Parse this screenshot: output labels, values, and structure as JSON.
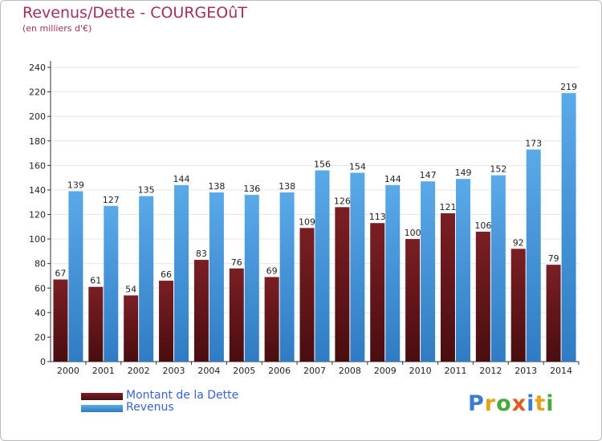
{
  "title": "Revenus/Dette - COURGEOûT",
  "subtitle": "(en milliers d'€)",
  "colors": {
    "debt": "#7a1f24",
    "debt_dark": "#4a0d10",
    "revenue": "#5aa9e8",
    "revenue_dark": "#2f7cc4",
    "grid": "#e6e6e6",
    "axis": "#333333",
    "title": "#a0305a",
    "legend_text": "#3a63d0"
  },
  "logo": {
    "text": "Proxiti",
    "letter_colors": [
      "#3a7bd5",
      "#e8a21a",
      "#4aa83c",
      "#e05a1e",
      "#3a7bd5",
      "#e8a21a",
      "#4aa83c"
    ]
  },
  "chart_data": {
    "type": "bar",
    "categories": [
      "2000",
      "2001",
      "2002",
      "2003",
      "2004",
      "2005",
      "2006",
      "2007",
      "2008",
      "2009",
      "2010",
      "2011",
      "2012",
      "2013",
      "2014"
    ],
    "series": [
      {
        "name": "Montant de la Dette",
        "values": [
          67,
          61,
          54,
          66,
          83,
          76,
          69,
          109,
          126,
          113,
          100,
          121,
          106,
          92,
          79
        ]
      },
      {
        "name": "Revenus",
        "values": [
          139,
          127,
          135,
          144,
          138,
          136,
          138,
          156,
          154,
          144,
          147,
          149,
          152,
          173,
          219
        ]
      }
    ],
    "ylim": [
      0,
      240
    ],
    "yticks": [
      0,
      20,
      40,
      60,
      80,
      100,
      120,
      140,
      160,
      180,
      200,
      220,
      240
    ],
    "grid": true,
    "legend_position": "bottom-left"
  }
}
